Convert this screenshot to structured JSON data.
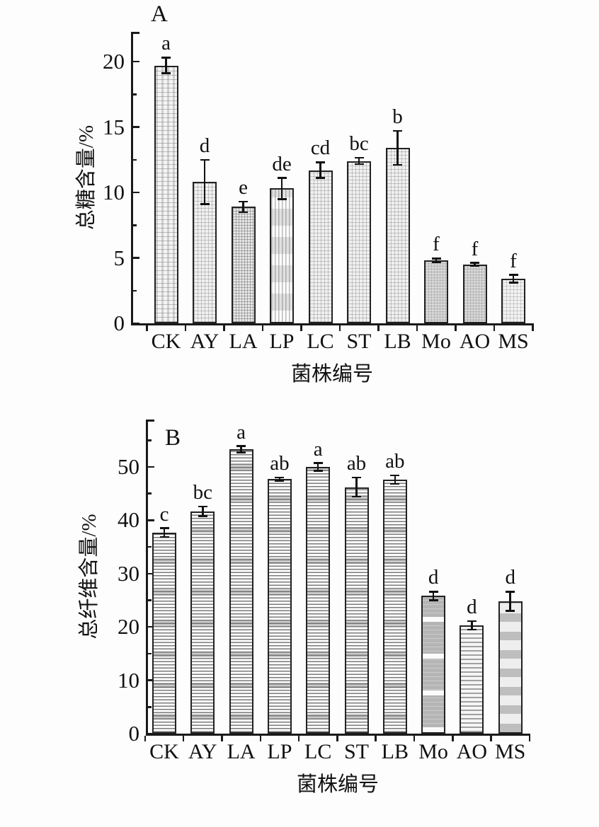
{
  "colors": {
    "axis": "#1a1a1a",
    "text": "#111111",
    "bar_border": "#222222",
    "background": "#fdfdfd"
  },
  "chart_data": [
    {
      "type": "bar",
      "panel_label": "A",
      "title": "",
      "xlabel": "菌株编号",
      "ylabel": "总糖含量/%",
      "categories": [
        "CK",
        "AY",
        "LA",
        "LP",
        "LC",
        "ST",
        "LB",
        "Mo",
        "AO",
        "MS"
      ],
      "values": [
        19.7,
        10.8,
        8.9,
        10.3,
        11.7,
        12.4,
        13.4,
        4.8,
        4.5,
        3.4
      ],
      "errors": [
        0.6,
        1.7,
        0.4,
        0.8,
        0.6,
        0.25,
        1.3,
        0.15,
        0.12,
        0.3
      ],
      "sig_letters": [
        "a",
        "d",
        "e",
        "de",
        "cd",
        "bc",
        "b",
        "f",
        "f",
        "f"
      ],
      "ylim": [
        0,
        22.3
      ],
      "yticks": [
        0,
        5,
        10,
        15,
        20
      ],
      "minor_tick_step": 2.5,
      "grid": "off",
      "legend": "none",
      "bar_patterns": [
        "a-brick",
        "a-check",
        "a-dense",
        "a-vblocks",
        "a-check",
        "a-check",
        "a-check",
        "a-dark",
        "a-dark",
        "a-light"
      ]
    },
    {
      "type": "bar",
      "panel_label": "B",
      "title": "",
      "xlabel": "菌株编号",
      "ylabel": "总纤维含量/%",
      "categories": [
        "CK",
        "AY",
        "LA",
        "LP",
        "LC",
        "ST",
        "LB",
        "Mo",
        "AO",
        "MS"
      ],
      "values": [
        37.7,
        41.7,
        53.3,
        47.7,
        50.0,
        46.2,
        47.6,
        25.8,
        20.3,
        24.8
      ],
      "errors": [
        0.8,
        0.9,
        0.6,
        0.3,
        0.7,
        1.8,
        0.8,
        0.8,
        0.8,
        1.8
      ],
      "sig_letters": [
        "c",
        "bc",
        "a",
        "ab",
        "a",
        "ab",
        "ab",
        "d",
        "d",
        "d"
      ],
      "ylim": [
        0,
        58.9
      ],
      "yticks": [
        0,
        10,
        20,
        30,
        40,
        50
      ],
      "minor_tick_step": 5,
      "grid": "off",
      "legend": "none",
      "bar_patterns": [
        "b-hstripe",
        "b-hstripe",
        "b-hstripe",
        "b-hstripe",
        "b-hstripe",
        "b-hstripe",
        "b-hstripe",
        "b-graybands",
        "b-hfine",
        "b-wideband"
      ]
    }
  ]
}
